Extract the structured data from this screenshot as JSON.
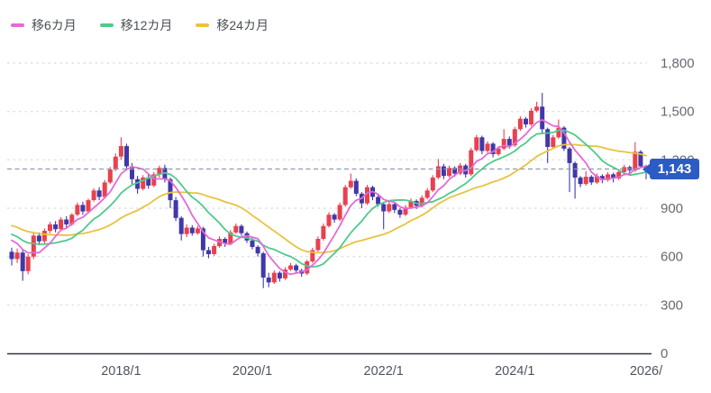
{
  "legend": {
    "items": [
      {
        "label": "移6カ月",
        "color": "#e46ad6"
      },
      {
        "label": "移12カ月",
        "color": "#4fca8c"
      },
      {
        "label": "移24カ月",
        "color": "#e8c33e"
      }
    ]
  },
  "chart_data": {
    "type": "candlestick",
    "title": "",
    "xlabel": "",
    "ylabel": "",
    "ylim": [
      0,
      1800
    ],
    "grid": true,
    "legend_position": "top-left",
    "current_price": 1143,
    "current_price_label": "1,143",
    "colors": {
      "up": "#e8414f",
      "down": "#4038a8",
      "grid": "#d8dbe0",
      "axis": "#30343c",
      "current_price_line": "#8f9ab0",
      "badge": "#2b5cc4",
      "y_label": "#646a73",
      "x_label": "#4f555e"
    },
    "y_ticks": [
      {
        "value": 0,
        "label": "0"
      },
      {
        "value": 300,
        "label": "300"
      },
      {
        "value": 600,
        "label": "600"
      },
      {
        "value": 900,
        "label": "900"
      },
      {
        "value": 1200,
        "label": "1,200"
      },
      {
        "value": 1500,
        "label": "1,500"
      },
      {
        "value": 1800,
        "label": "1,800"
      }
    ],
    "x_ticks": [
      {
        "index": 20,
        "label": "2018/1"
      },
      {
        "index": 44,
        "label": "2020/1"
      },
      {
        "index": 68,
        "label": "2022/1"
      },
      {
        "index": 92,
        "label": "2024/1"
      },
      {
        "index": 116,
        "label": "2026/"
      }
    ],
    "moving_averages": [
      {
        "name": "移6カ月",
        "window": 6,
        "color": "#e46ad6"
      },
      {
        "name": "移12カ月",
        "window": 12,
        "color": "#4fca8c"
      },
      {
        "name": "移24カ月",
        "window": 24,
        "color": "#e8c33e"
      }
    ],
    "ma_seed_closes": [
      880,
      875,
      870,
      865,
      860,
      855,
      850,
      840,
      830,
      820,
      810,
      800,
      795,
      790,
      780,
      770,
      760,
      750,
      745,
      730,
      730,
      715,
      700
    ],
    "candles": {
      "columns": [
        "month",
        "open",
        "high",
        "low",
        "close"
      ],
      "rows": [
        [
          "2016-05",
          630,
          655,
          545,
          585
        ],
        [
          "2016-06",
          585,
          650,
          560,
          625
        ],
        [
          "2016-07",
          625,
          640,
          450,
          510
        ],
        [
          "2016-08",
          510,
          615,
          490,
          600
        ],
        [
          "2016-09",
          600,
          745,
          585,
          730
        ],
        [
          "2016-10",
          730,
          750,
          670,
          695
        ],
        [
          "2016-11",
          695,
          775,
          680,
          760
        ],
        [
          "2016-12",
          760,
          815,
          745,
          800
        ],
        [
          "2017-01",
          800,
          820,
          750,
          770
        ],
        [
          "2017-02",
          770,
          845,
          760,
          830
        ],
        [
          "2017-03",
          830,
          850,
          780,
          800
        ],
        [
          "2017-04",
          800,
          870,
          790,
          860
        ],
        [
          "2017-05",
          860,
          935,
          850,
          920
        ],
        [
          "2017-06",
          920,
          940,
          860,
          880
        ],
        [
          "2017-07",
          880,
          960,
          870,
          950
        ],
        [
          "2017-08",
          950,
          1025,
          940,
          1010
        ],
        [
          "2017-09",
          1010,
          1030,
          950,
          970
        ],
        [
          "2017-10",
          970,
          1075,
          960,
          1060
        ],
        [
          "2017-11",
          1060,
          1155,
          1050,
          1140
        ],
        [
          "2017-12",
          1140,
          1240,
          1130,
          1220
        ],
        [
          "2018-01",
          1220,
          1340,
          1200,
          1285
        ],
        [
          "2018-02",
          1285,
          1300,
          1140,
          1160
        ],
        [
          "2018-03",
          1160,
          1180,
          1050,
          1080
        ],
        [
          "2018-04",
          1080,
          1100,
          990,
          1020
        ],
        [
          "2018-05",
          1020,
          1105,
          1010,
          1090
        ],
        [
          "2018-06",
          1090,
          1110,
          1020,
          1040
        ],
        [
          "2018-07",
          1040,
          1125,
          1030,
          1110
        ],
        [
          "2018-08",
          1110,
          1165,
          1090,
          1150
        ],
        [
          "2018-09",
          1150,
          1170,
          1060,
          1080
        ],
        [
          "2018-10",
          1080,
          1090,
          900,
          950
        ],
        [
          "2018-11",
          950,
          970,
          820,
          840
        ],
        [
          "2018-12",
          840,
          850,
          700,
          740
        ],
        [
          "2019-01",
          740,
          800,
          720,
          780
        ],
        [
          "2019-02",
          780,
          795,
          730,
          745
        ],
        [
          "2019-03",
          745,
          790,
          735,
          775
        ],
        [
          "2019-04",
          775,
          785,
          600,
          640
        ],
        [
          "2019-05",
          640,
          660,
          590,
          615
        ],
        [
          "2019-06",
          615,
          680,
          605,
          665
        ],
        [
          "2019-07",
          665,
          725,
          655,
          710
        ],
        [
          "2019-08",
          710,
          720,
          660,
          680
        ],
        [
          "2019-09",
          680,
          765,
          670,
          750
        ],
        [
          "2019-10",
          750,
          805,
          740,
          790
        ],
        [
          "2019-11",
          790,
          800,
          730,
          745
        ],
        [
          "2019-12",
          745,
          755,
          685,
          700
        ],
        [
          "2020-01",
          700,
          715,
          645,
          660
        ],
        [
          "2020-02",
          660,
          670,
          600,
          620
        ],
        [
          "2020-03",
          620,
          630,
          405,
          470
        ],
        [
          "2020-04",
          470,
          500,
          410,
          440
        ],
        [
          "2020-05",
          440,
          515,
          430,
          500
        ],
        [
          "2020-06",
          500,
          510,
          445,
          465
        ],
        [
          "2020-07",
          465,
          535,
          455,
          520
        ],
        [
          "2020-08",
          520,
          560,
          510,
          545
        ],
        [
          "2020-09",
          545,
          555,
          500,
          515
        ],
        [
          "2020-10",
          515,
          525,
          475,
          495
        ],
        [
          "2020-11",
          495,
          580,
          485,
          570
        ],
        [
          "2020-12",
          570,
          655,
          560,
          640
        ],
        [
          "2021-01",
          640,
          725,
          630,
          710
        ],
        [
          "2021-02",
          710,
          805,
          700,
          790
        ],
        [
          "2021-03",
          790,
          875,
          780,
          860
        ],
        [
          "2021-04",
          860,
          870,
          810,
          830
        ],
        [
          "2021-05",
          830,
          935,
          820,
          920
        ],
        [
          "2021-06",
          920,
          1045,
          910,
          1030
        ],
        [
          "2021-07",
          1030,
          1115,
          1020,
          1070
        ],
        [
          "2021-08",
          1070,
          1085,
          975,
          990
        ],
        [
          "2021-09",
          990,
          1000,
          900,
          930
        ],
        [
          "2021-10",
          930,
          1045,
          920,
          1030
        ],
        [
          "2021-11",
          1030,
          1040,
          950,
          970
        ],
        [
          "2021-12",
          970,
          985,
          910,
          925
        ],
        [
          "2022-01",
          925,
          935,
          770,
          880
        ],
        [
          "2022-02",
          880,
          940,
          870,
          925
        ],
        [
          "2022-03",
          925,
          940,
          870,
          890
        ],
        [
          "2022-04",
          890,
          900,
          840,
          860
        ],
        [
          "2022-05",
          860,
          920,
          850,
          905
        ],
        [
          "2022-06",
          905,
          960,
          895,
          945
        ],
        [
          "2022-07",
          945,
          955,
          895,
          915
        ],
        [
          "2022-08",
          915,
          980,
          905,
          965
        ],
        [
          "2022-09",
          965,
          1025,
          955,
          1010
        ],
        [
          "2022-10",
          1010,
          1105,
          1000,
          1090
        ],
        [
          "2022-11",
          1090,
          1205,
          1080,
          1160
        ],
        [
          "2022-12",
          1160,
          1175,
          1080,
          1100
        ],
        [
          "2023-01",
          1100,
          1165,
          1090,
          1150
        ],
        [
          "2023-02",
          1150,
          1160,
          1095,
          1115
        ],
        [
          "2023-03",
          1115,
          1180,
          1105,
          1165
        ],
        [
          "2023-04",
          1165,
          1175,
          1090,
          1110
        ],
        [
          "2023-05",
          1110,
          1275,
          1100,
          1260
        ],
        [
          "2023-06",
          1260,
          1355,
          1250,
          1340
        ],
        [
          "2023-07",
          1340,
          1350,
          1235,
          1255
        ],
        [
          "2023-08",
          1255,
          1315,
          1245,
          1300
        ],
        [
          "2023-09",
          1300,
          1310,
          1215,
          1235
        ],
        [
          "2023-10",
          1235,
          1285,
          1225,
          1270
        ],
        [
          "2023-11",
          1270,
          1390,
          1260,
          1330
        ],
        [
          "2023-12",
          1330,
          1345,
          1270,
          1290
        ],
        [
          "2024-01",
          1290,
          1405,
          1280,
          1390
        ],
        [
          "2024-02",
          1390,
          1470,
          1380,
          1455
        ],
        [
          "2024-03",
          1455,
          1465,
          1400,
          1420
        ],
        [
          "2024-04",
          1420,
          1520,
          1410,
          1505
        ],
        [
          "2024-05",
          1505,
          1560,
          1495,
          1530
        ],
        [
          "2024-06",
          1530,
          1615,
          1360,
          1390
        ],
        [
          "2024-07",
          1390,
          1400,
          1180,
          1280
        ],
        [
          "2024-08",
          1280,
          1355,
          1270,
          1340
        ],
        [
          "2024-09",
          1340,
          1450,
          1330,
          1400
        ],
        [
          "2024-10",
          1400,
          1410,
          1255,
          1270
        ],
        [
          "2024-11",
          1270,
          1280,
          1000,
          1180
        ],
        [
          "2024-12",
          1180,
          1190,
          960,
          1090
        ],
        [
          "2025-01",
          1090,
          1100,
          1030,
          1050
        ],
        [
          "2025-02",
          1050,
          1130,
          1040,
          1095
        ],
        [
          "2025-03",
          1095,
          1105,
          1045,
          1060
        ],
        [
          "2025-04",
          1060,
          1115,
          1050,
          1100
        ],
        [
          "2025-05",
          1100,
          1110,
          1055,
          1075
        ],
        [
          "2025-06",
          1075,
          1125,
          1065,
          1110
        ],
        [
          "2025-07",
          1110,
          1120,
          1060,
          1085
        ],
        [
          "2025-08",
          1085,
          1140,
          1075,
          1125
        ],
        [
          "2025-09",
          1125,
          1170,
          1115,
          1155
        ],
        [
          "2025-10",
          1155,
          1165,
          1105,
          1135
        ],
        [
          "2025-11",
          1135,
          1310,
          1125,
          1250
        ],
        [
          "2025-12",
          1250,
          1260,
          1150,
          1160
        ],
        [
          "2026-01",
          1160,
          1170,
          1080,
          1143
        ]
      ]
    }
  }
}
